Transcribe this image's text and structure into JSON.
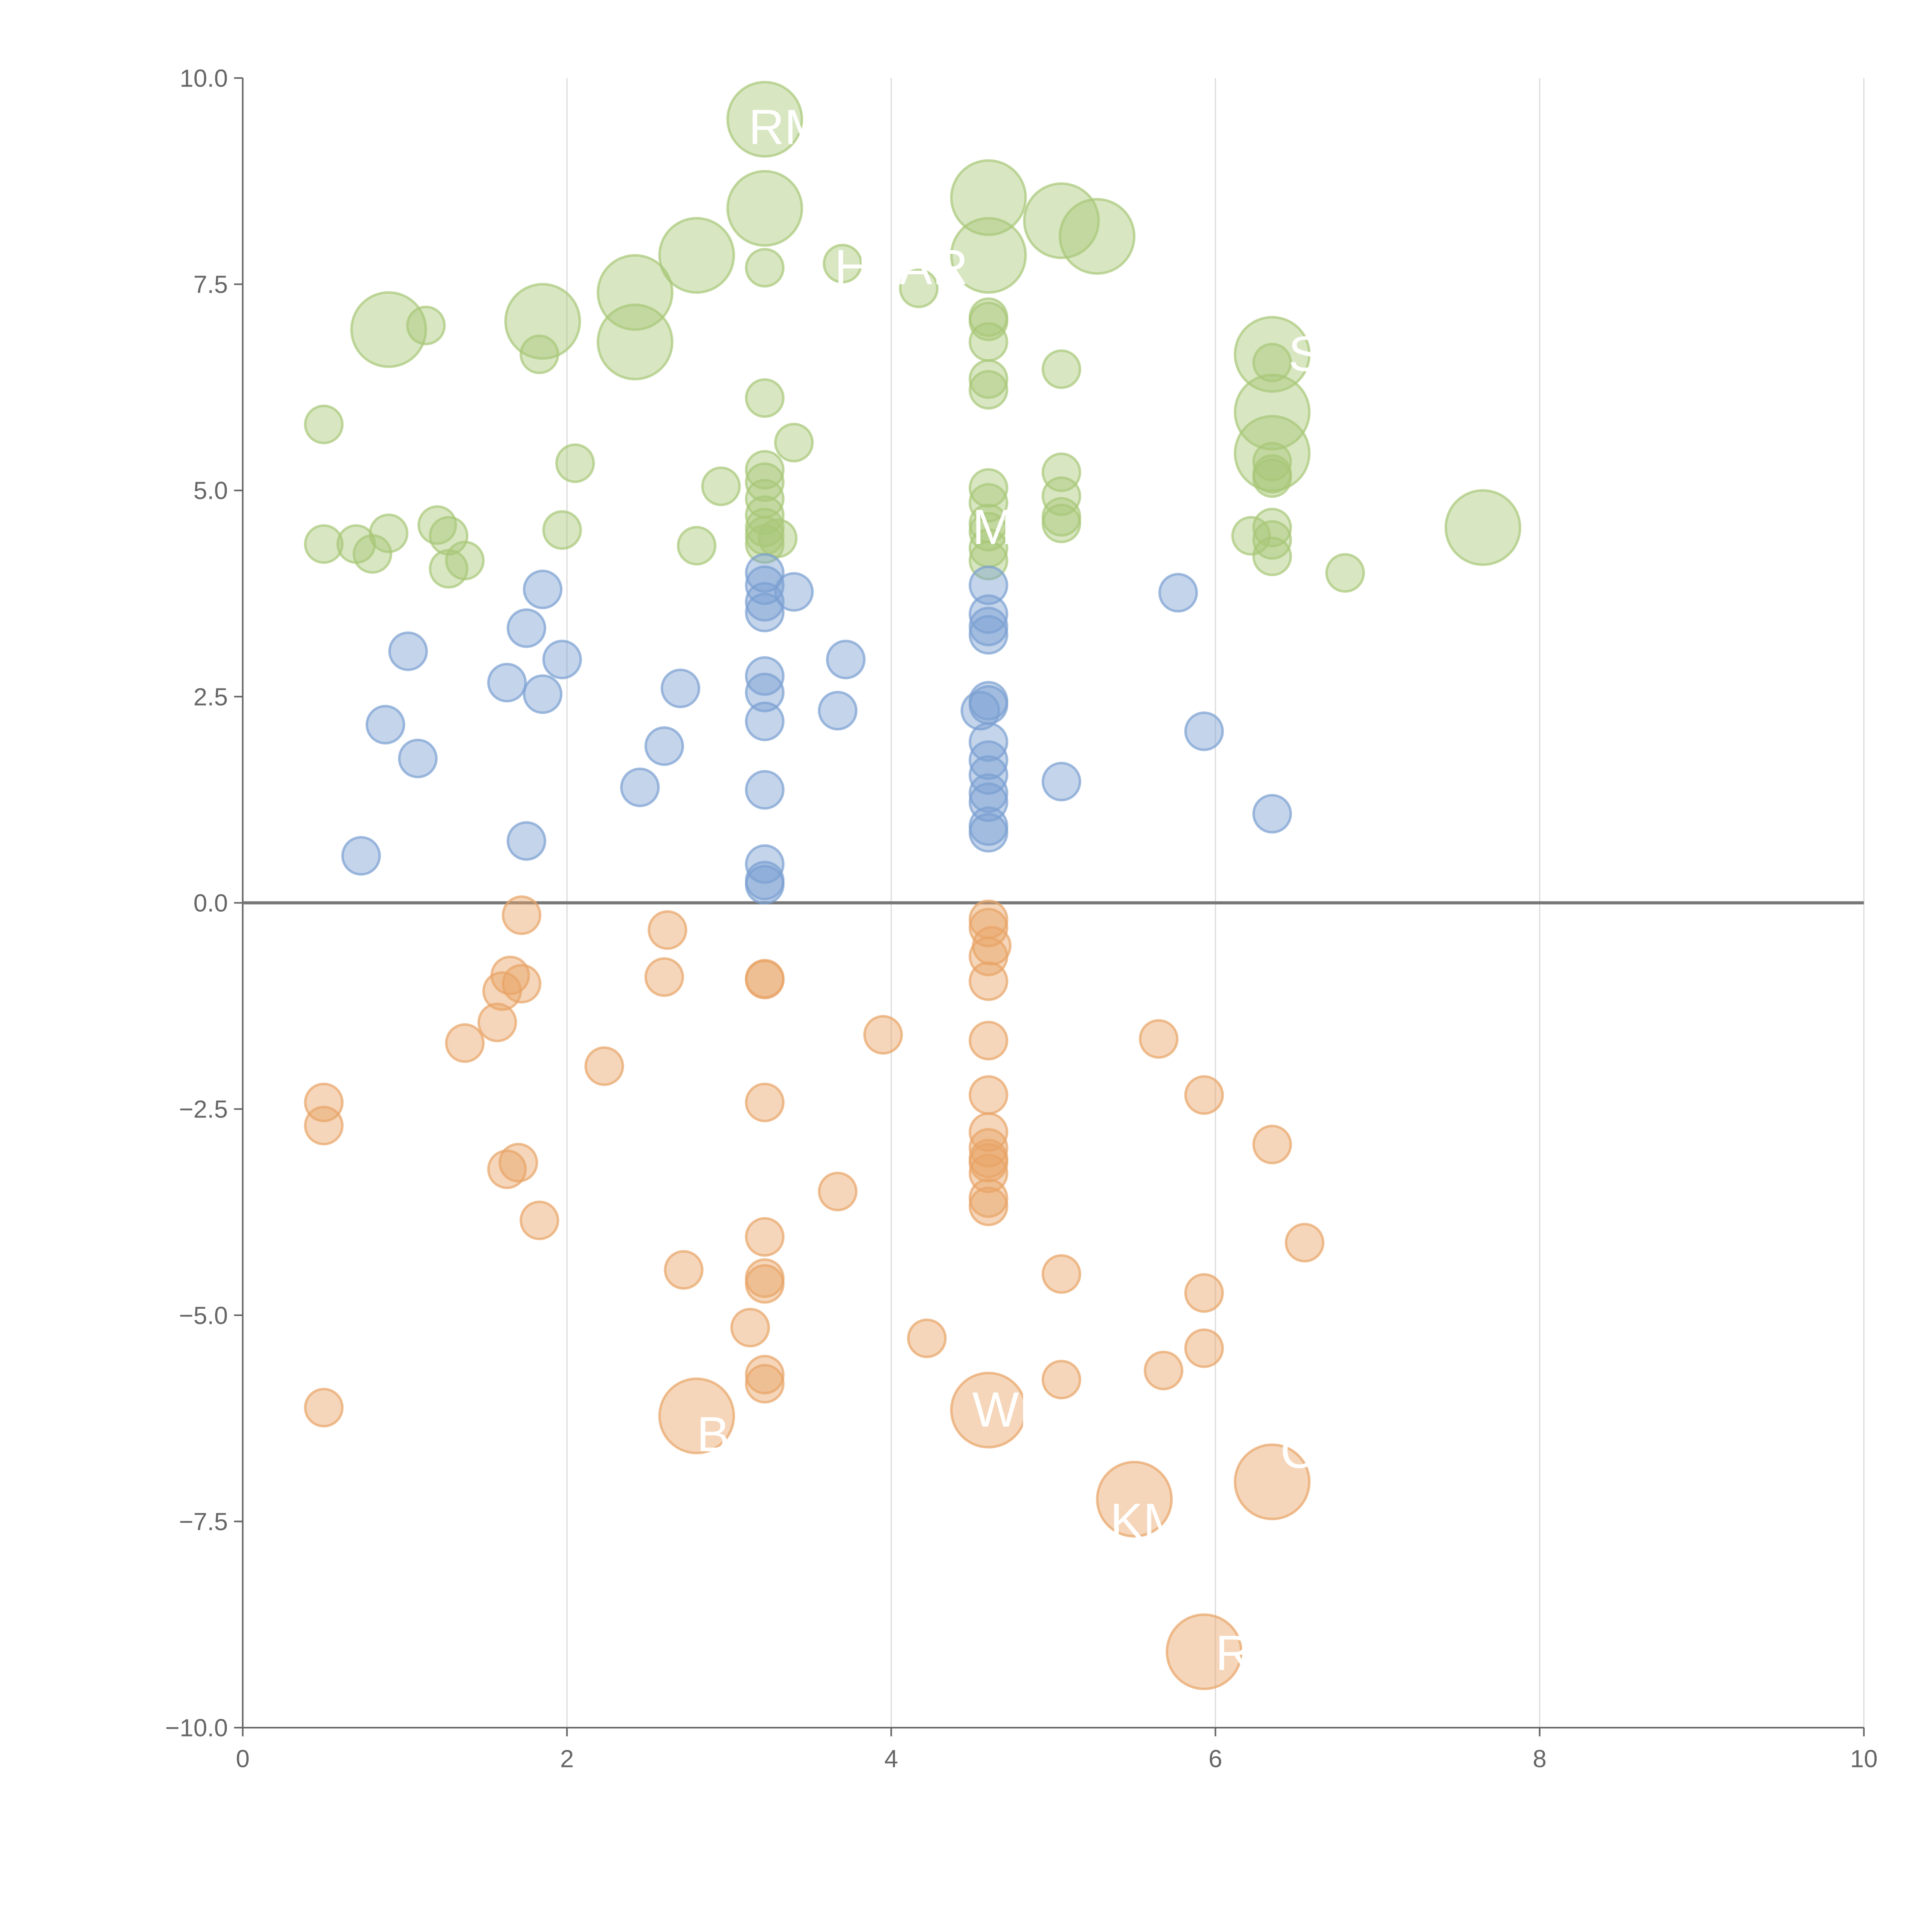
{
  "chart_data": {
    "type": "scatter",
    "title": "",
    "xlabel": "",
    "ylabel": "",
    "xlim": [
      0,
      10
    ],
    "ylim": [
      -10,
      10
    ],
    "grid": "vertical",
    "xticks": [
      "0",
      "2",
      "4",
      "6",
      "8",
      "10"
    ],
    "xtick_values": [
      0,
      2,
      4,
      6,
      8,
      10
    ],
    "yticks": [
      "10.0",
      "7.5",
      "5.0",
      "2.5",
      "0.0",
      "−2.5",
      "−5.0",
      "−7.5",
      "−10.0"
    ],
    "ytick_values": [
      10,
      7.5,
      5,
      2.5,
      0,
      -2.5,
      -5,
      -7.5,
      -10
    ],
    "series": [
      {
        "name": "green",
        "color": "#a8c878",
        "points": [
          [
            3.22,
            9.5,
            2
          ],
          [
            3.22,
            8.42,
            2
          ],
          [
            2.8,
            7.85,
            2
          ],
          [
            2.42,
            7.4,
            2
          ],
          [
            2.42,
            6.8,
            2
          ],
          [
            1.85,
            7.05,
            2
          ],
          [
            0.9,
            6.95,
            2
          ],
          [
            1.13,
            7.0,
            1
          ],
          [
            1.83,
            6.65,
            1
          ],
          [
            3.22,
            7.7,
            1
          ],
          [
            3.7,
            7.75,
            1
          ],
          [
            4.17,
            7.45,
            1
          ],
          [
            4.6,
            8.55,
            2
          ],
          [
            4.6,
            7.85,
            2
          ],
          [
            5.05,
            8.27,
            2
          ],
          [
            5.27,
            8.08,
            2
          ],
          [
            4.6,
            7.1,
            1
          ],
          [
            4.6,
            7.05,
            1
          ],
          [
            4.6,
            6.8,
            1
          ],
          [
            4.6,
            6.35,
            1
          ],
          [
            4.6,
            6.22,
            1
          ],
          [
            5.05,
            6.47,
            1
          ],
          [
            6.35,
            6.65,
            2
          ],
          [
            6.35,
            6.55,
            1
          ],
          [
            6.35,
            5.95,
            2
          ],
          [
            6.35,
            5.45,
            2
          ],
          [
            6.35,
            5.35,
            1
          ],
          [
            6.35,
            5.2,
            1
          ],
          [
            6.35,
            5.15,
            1
          ],
          [
            0.5,
            5.8,
            1
          ],
          [
            3.22,
            6.12,
            1
          ],
          [
            3.4,
            5.58,
            1
          ],
          [
            2.05,
            5.33,
            1
          ],
          [
            2.95,
            5.05,
            1
          ],
          [
            3.22,
            5.25,
            1
          ],
          [
            3.22,
            5.1,
            1
          ],
          [
            3.22,
            4.9,
            1
          ],
          [
            3.22,
            4.7,
            1
          ],
          [
            3.22,
            4.55,
            1
          ],
          [
            3.22,
            4.45,
            1
          ],
          [
            3.22,
            4.35,
            1
          ],
          [
            3.3,
            4.42,
            1
          ],
          [
            0.5,
            4.35,
            1
          ],
          [
            0.7,
            4.35,
            1
          ],
          [
            0.8,
            4.23,
            1
          ],
          [
            0.9,
            4.48,
            1
          ],
          [
            1.2,
            4.58,
            1
          ],
          [
            1.27,
            4.45,
            1
          ],
          [
            1.27,
            4.05,
            1
          ],
          [
            1.37,
            4.15,
            1
          ],
          [
            1.97,
            4.52,
            1
          ],
          [
            2.8,
            4.33,
            1
          ],
          [
            4.6,
            5.03,
            1
          ],
          [
            4.6,
            4.85,
            1
          ],
          [
            4.6,
            4.6,
            1
          ],
          [
            4.6,
            4.5,
            1
          ],
          [
            4.6,
            4.3,
            1
          ],
          [
            4.6,
            4.15,
            1
          ],
          [
            5.05,
            5.22,
            1
          ],
          [
            5.05,
            4.93,
            1
          ],
          [
            5.05,
            4.68,
            1
          ],
          [
            5.05,
            4.6,
            1
          ],
          [
            6.22,
            4.45,
            1
          ],
          [
            6.35,
            4.55,
            1
          ],
          [
            6.35,
            4.4,
            1
          ],
          [
            6.35,
            4.2,
            1
          ],
          [
            6.8,
            4.0,
            1
          ],
          [
            7.65,
            4.55,
            2
          ]
        ]
      },
      {
        "name": "blue",
        "color": "#7aa0d2",
        "points": [
          [
            1.85,
            3.8,
            1
          ],
          [
            1.75,
            3.33,
            1
          ],
          [
            1.02,
            3.05,
            1
          ],
          [
            1.97,
            2.95,
            1
          ],
          [
            1.63,
            2.67,
            1
          ],
          [
            1.85,
            2.53,
            1
          ],
          [
            0.88,
            2.16,
            1
          ],
          [
            1.08,
            1.75,
            1
          ],
          [
            2.7,
            2.6,
            1
          ],
          [
            2.6,
            1.9,
            1
          ],
          [
            2.45,
            1.4,
            1
          ],
          [
            0.73,
            0.57,
            1
          ],
          [
            1.75,
            0.75,
            1
          ],
          [
            3.22,
            4.0,
            1
          ],
          [
            3.22,
            3.85,
            1
          ],
          [
            3.22,
            3.65,
            1
          ],
          [
            3.22,
            3.52,
            1
          ],
          [
            3.4,
            3.77,
            1
          ],
          [
            3.72,
            2.95,
            1
          ],
          [
            3.67,
            2.33,
            1
          ],
          [
            3.22,
            2.75,
            1
          ],
          [
            3.22,
            2.55,
            1
          ],
          [
            3.22,
            2.2,
            1
          ],
          [
            3.22,
            1.37,
            1
          ],
          [
            3.22,
            0.47,
            1
          ],
          [
            3.22,
            0.27,
            1
          ],
          [
            3.22,
            0.22,
            1
          ],
          [
            4.6,
            3.85,
            1
          ],
          [
            4.6,
            3.5,
            1
          ],
          [
            4.6,
            3.35,
            1
          ],
          [
            4.6,
            3.25,
            1
          ],
          [
            4.6,
            2.45,
            1
          ],
          [
            4.6,
            2.4,
            1
          ],
          [
            4.55,
            2.33,
            1
          ],
          [
            4.6,
            1.95,
            1
          ],
          [
            4.6,
            1.73,
            1
          ],
          [
            4.6,
            1.55,
            1
          ],
          [
            4.6,
            1.33,
            1
          ],
          [
            4.6,
            1.22,
            1
          ],
          [
            4.6,
            0.93,
            1
          ],
          [
            4.6,
            0.85,
            1
          ],
          [
            5.05,
            1.47,
            1
          ],
          [
            5.77,
            3.76,
            1
          ],
          [
            5.93,
            2.08,
            1
          ],
          [
            6.35,
            1.08,
            1
          ]
        ]
      },
      {
        "name": "orange",
        "color": "#e8a466",
        "points": [
          [
            1.72,
            -0.15,
            1
          ],
          [
            2.62,
            -0.33,
            1
          ],
          [
            1.65,
            -0.88,
            1
          ],
          [
            1.72,
            -0.98,
            1
          ],
          [
            1.6,
            -1.07,
            1
          ],
          [
            1.57,
            -1.45,
            1
          ],
          [
            1.37,
            -1.7,
            1
          ],
          [
            2.6,
            -0.9,
            1
          ],
          [
            2.23,
            -1.98,
            1
          ],
          [
            0.5,
            -2.42,
            1
          ],
          [
            0.5,
            -2.7,
            1
          ],
          [
            1.63,
            -3.23,
            1
          ],
          [
            1.7,
            -3.15,
            1
          ],
          [
            1.83,
            -3.85,
            1
          ],
          [
            3.22,
            -0.92,
            1
          ],
          [
            3.22,
            -0.93,
            1
          ],
          [
            3.22,
            -2.42,
            1
          ],
          [
            3.22,
            -4.05,
            1
          ],
          [
            3.22,
            -4.55,
            1
          ],
          [
            3.22,
            -4.62,
            1
          ],
          [
            3.13,
            -5.15,
            1
          ],
          [
            3.22,
            -5.72,
            1
          ],
          [
            3.22,
            -5.83,
            1
          ],
          [
            2.72,
            -4.45,
            1
          ],
          [
            2.8,
            -6.22,
            2
          ],
          [
            0.5,
            -6.12,
            1
          ],
          [
            3.67,
            -3.5,
            1
          ],
          [
            3.95,
            -1.6,
            1
          ],
          [
            4.22,
            -5.28,
            1
          ],
          [
            4.6,
            -0.2,
            1
          ],
          [
            4.6,
            -0.3,
            1
          ],
          [
            4.62,
            -0.52,
            1
          ],
          [
            4.6,
            -0.65,
            1
          ],
          [
            4.6,
            -0.95,
            1
          ],
          [
            4.6,
            -1.67,
            1
          ],
          [
            4.6,
            -2.33,
            1
          ],
          [
            4.6,
            -2.78,
            1
          ],
          [
            4.6,
            -2.97,
            1
          ],
          [
            4.6,
            -3.1,
            1
          ],
          [
            4.6,
            -3.15,
            1
          ],
          [
            4.6,
            -3.28,
            1
          ],
          [
            4.6,
            -3.58,
            1
          ],
          [
            4.6,
            -3.68,
            1
          ],
          [
            4.6,
            -6.15,
            2
          ],
          [
            5.05,
            -4.5,
            1
          ],
          [
            5.05,
            -5.78,
            1
          ],
          [
            5.65,
            -1.65,
            1
          ],
          [
            5.93,
            -2.33,
            1
          ],
          [
            6.35,
            -2.93,
            1
          ],
          [
            6.55,
            -4.12,
            1
          ],
          [
            5.93,
            -4.73,
            1
          ],
          [
            5.93,
            -5.4,
            1
          ],
          [
            5.68,
            -5.67,
            1
          ],
          [
            5.5,
            -7.23,
            2
          ],
          [
            6.35,
            -7.02,
            2
          ],
          [
            5.93,
            -9.08,
            2
          ]
        ]
      }
    ],
    "annotations": [
      {
        "text": "RM",
        "x": 3.12,
        "y": 9.2
      },
      {
        "text": "H",
        "x": 3.65,
        "y": 7.5
      },
      {
        "text": "AR",
        "x": 4.05,
        "y": 7.5
      },
      {
        "text": "M",
        "x": 4.5,
        "y": 4.35
      },
      {
        "text": "S",
        "x": 6.45,
        "y": 6.45
      },
      {
        "text": "WR",
        "x": 4.5,
        "y": -6.35
      },
      {
        "text": "B",
        "x": 2.8,
        "y": -6.65
      },
      {
        "text": "KMB",
        "x": 5.35,
        "y": -7.7
      },
      {
        "text": "R",
        "x": 6.0,
        "y": -9.3
      },
      {
        "text": "C",
        "x": 6.4,
        "y": -6.85
      }
    ]
  }
}
